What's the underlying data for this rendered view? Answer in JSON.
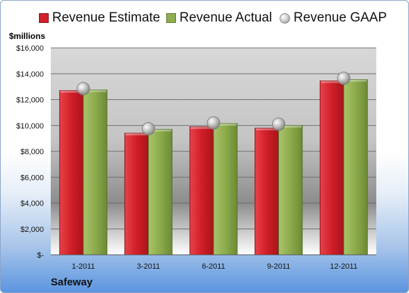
{
  "legend": {
    "estimate": "Revenue Estimate",
    "actual": "Revenue Actual",
    "gaap": "Revenue GAAP"
  },
  "unit_label": "$millions",
  "company": "Safeway",
  "colors": {
    "estimate": "#d3202a",
    "actual": "#8fae4f",
    "gaap": "#b8b8b8"
  },
  "chart_data": {
    "type": "bar",
    "categories": [
      "1-2011",
      "3-2011",
      "6-2011",
      "9-2011",
      "12-2011"
    ],
    "series": [
      {
        "name": "Revenue Estimate",
        "values": [
          12700,
          9400,
          9900,
          9800,
          13450
        ]
      },
      {
        "name": "Revenue Actual",
        "values": [
          12750,
          9700,
          10150,
          10000,
          13550
        ]
      },
      {
        "name": "Revenue GAAP",
        "values": [
          12850,
          9750,
          10200,
          10100,
          13650
        ]
      }
    ],
    "ylim": [
      0,
      16000
    ],
    "y_tick_labels": [
      "$-",
      "$2,000",
      "$4,000",
      "$6,000",
      "$8,000",
      "$10,000",
      "$12,000",
      "$14,000",
      "$16,000"
    ],
    "ylabel": "$millions",
    "grid": true,
    "legend_position": "top"
  }
}
